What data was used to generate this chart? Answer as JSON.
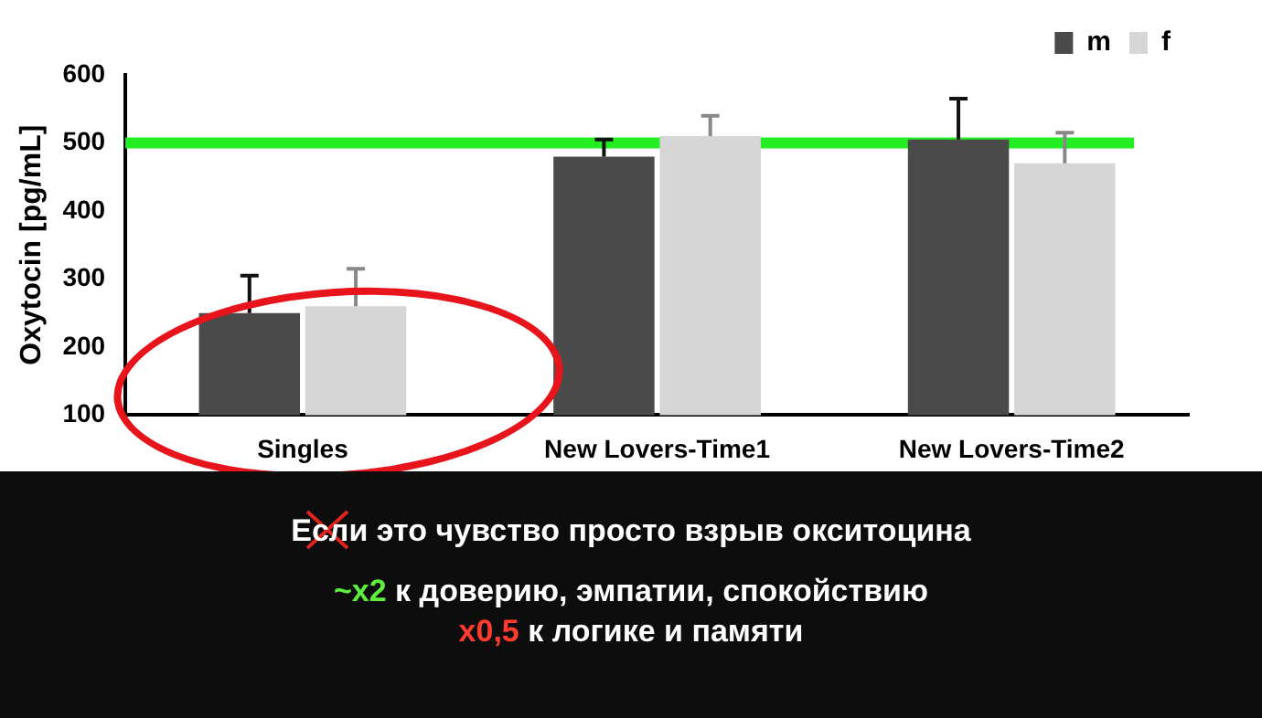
{
  "chart_data": {
    "type": "bar",
    "categories": [
      "Singles",
      "New Lovers-Time1",
      "New Lovers-Time2"
    ],
    "series": [
      {
        "name": "m",
        "color": "#4a4a4a",
        "values": [
          250,
          480,
          505
        ],
        "errors": [
          [
            250,
            305
          ],
          [
            480,
            505
          ],
          [
            505,
            565
          ]
        ]
      },
      {
        "name": "f",
        "color": "#d6d6d6",
        "values": [
          260,
          510,
          470
        ],
        "errors": [
          [
            260,
            315
          ],
          [
            510,
            540
          ],
          [
            470,
            515
          ]
        ]
      }
    ],
    "ylabel": "Oxytocin [pg/mL]",
    "ylim": [
      100,
      600
    ],
    "yticks": [
      100,
      200,
      300,
      400,
      500,
      600
    ],
    "ref_lines": [
      {
        "axis": "y",
        "value": 500,
        "color": "#22ee22"
      }
    ],
    "grid": false,
    "legend": "top right",
    "annotations": [
      "Если это чувство просто взрыв окситоцина",
      "~x2 к доверию, эмпатии, спокойствию",
      "x0,5 к логике и памяти"
    ]
  }
}
